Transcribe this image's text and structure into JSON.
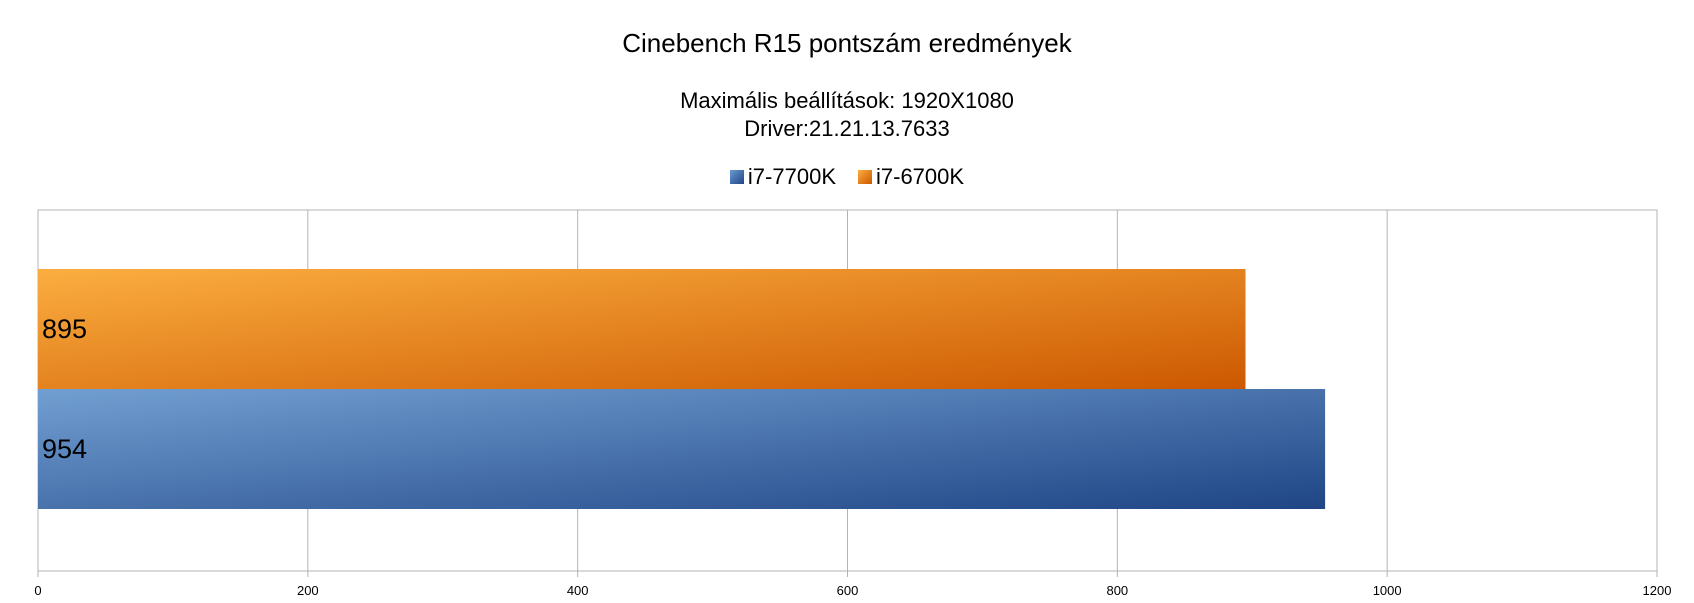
{
  "chart_data": {
    "type": "bar",
    "orientation": "horizontal",
    "title": "Cinebench R15 pontszám eredmények",
    "subtitle_lines": [
      "Maximális beállítások: 1920X1080",
      "Driver:21.21.13.7633"
    ],
    "categories": [
      ""
    ],
    "series": [
      {
        "name": "i7-7700K",
        "values": [
          954
        ],
        "color": "#3a66a8"
      },
      {
        "name": "i7-6700K",
        "values": [
          895
        ],
        "color": "#e88a1e"
      }
    ],
    "xlim": [
      0,
      1200
    ],
    "x_ticks": [
      "0",
      "200",
      "400",
      "600",
      "800",
      "1000",
      "1200"
    ],
    "data_labels": [
      "954",
      "895"
    ],
    "legend_position": "top",
    "grid": true
  }
}
